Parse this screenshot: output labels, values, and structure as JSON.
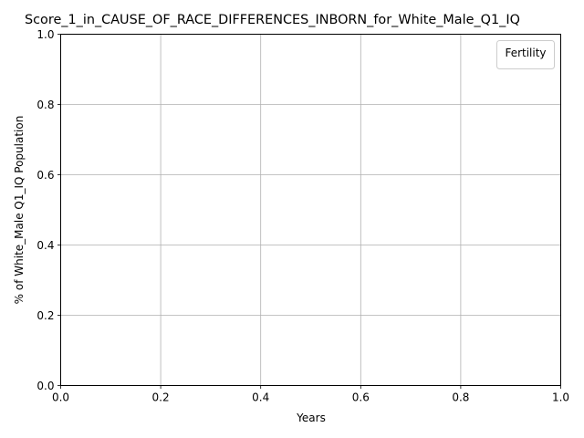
{
  "chart_data": {
    "type": "line",
    "title": "Score_1_in_CAUSE_OF_RACE_DIFFERENCES_INBORN_for_White_Male_Q1_IQ",
    "xlabel": "Years",
    "ylabel": "% of White_Male Q1_IQ Population",
    "xlim": [
      0.0,
      1.0
    ],
    "ylim": [
      0.0,
      1.0
    ],
    "xticks": [
      "0.0",
      "0.2",
      "0.4",
      "0.6",
      "0.8",
      "1.0"
    ],
    "yticks": [
      "0.0",
      "0.2",
      "0.4",
      "0.6",
      "0.8",
      "1.0"
    ],
    "grid": true,
    "legend": {
      "title": "Fertility",
      "placement": "top-right",
      "entries": []
    },
    "series": []
  }
}
